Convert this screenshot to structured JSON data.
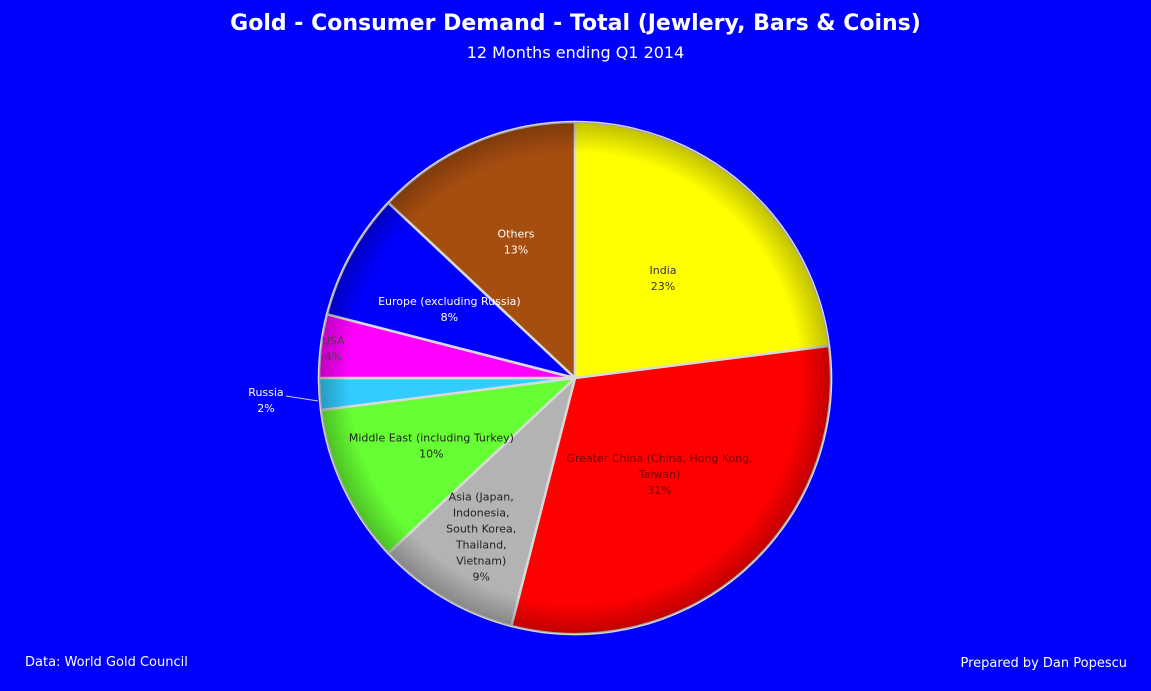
{
  "chart_data": {
    "type": "pie",
    "title": "Gold - Consumer Demand - Total (Jewlery, Bars & Coins)",
    "subtitle": "12 Months ending Q1 2014",
    "slices": [
      {
        "label": "India",
        "value": 23,
        "value_label": "23%",
        "color": "#ffff00",
        "label_color": "#333333"
      },
      {
        "label": "Greater China (China, Hong Kong, Taiwan)",
        "value": 31,
        "value_label": "31%",
        "color": "#ff0000",
        "label_color": "#7a0000"
      },
      {
        "label": "Asia (Japan, Indonesia, South Korea, Thailand, Vietnam)",
        "value": 9,
        "value_label": "9%",
        "color": "#b3b3b3",
        "label_color": "#222222"
      },
      {
        "label": "Middle East (including Turkey)",
        "value": 10,
        "value_label": "10%",
        "color": "#66ff33",
        "label_color": "#222222"
      },
      {
        "label": "Russia",
        "value": 2,
        "value_label": "2%",
        "color": "#33ccff",
        "label_color": "#ffffff"
      },
      {
        "label": "USA",
        "value": 4,
        "value_label": "4%",
        "color": "#ff00ff",
        "label_color": "#444444"
      },
      {
        "label": "Europe (excluding Russia)",
        "value": 8,
        "value_label": "8%",
        "color": "#0000ff",
        "label_color": "#ffffff"
      },
      {
        "label": "Others",
        "value": 13,
        "value_label": "13%",
        "color": "#a64d10",
        "label_color": "#ffffff"
      }
    ]
  },
  "footer": {
    "source": "Data: World Gold Council",
    "credit": "Prepared by Dan Popescu"
  },
  "colors": {
    "background": "#0000ff",
    "text": "#ffffff"
  }
}
